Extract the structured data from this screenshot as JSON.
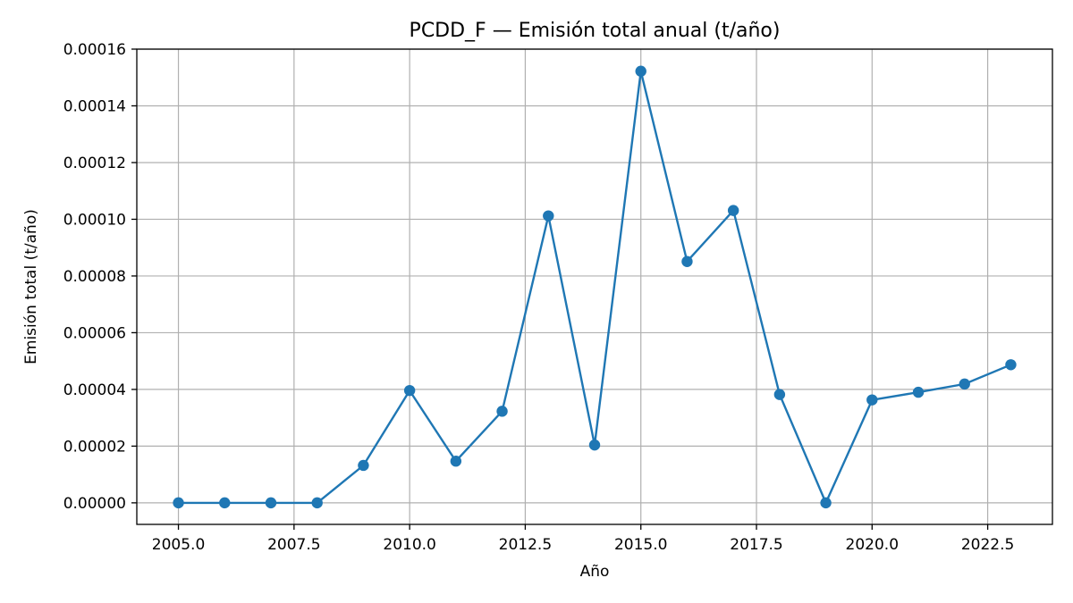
{
  "chart_data": {
    "type": "line",
    "title": "PCDD_F — Emisión total anual (t/año)",
    "xlabel": "Año",
    "ylabel": "Emisión total (t/año)",
    "xlim": [
      2004.1,
      2023.9
    ],
    "ylim": [
      -7.6e-06,
      0.00016
    ],
    "xticks": [
      2005.0,
      2007.5,
      2010.0,
      2012.5,
      2015.0,
      2017.5,
      2020.0,
      2022.5
    ],
    "xtick_labels": [
      "2005.0",
      "2007.5",
      "2010.0",
      "2012.5",
      "2015.0",
      "2017.5",
      "2020.0",
      "2022.5"
    ],
    "yticks": [
      0,
      2e-05,
      4e-05,
      6e-05,
      8e-05,
      0.0001,
      0.00012,
      0.00014,
      0.00016
    ],
    "ytick_labels": [
      "0.00000",
      "0.00002",
      "0.00004",
      "0.00006",
      "0.00008",
      "0.00010",
      "0.00012",
      "0.00014",
      "0.00016"
    ],
    "grid": true,
    "color": "#1f77b4",
    "x": [
      2005,
      2006,
      2007,
      2008,
      2009,
      2010,
      2011,
      2012,
      2013,
      2014,
      2015,
      2016,
      2017,
      2018,
      2019,
      2020,
      2021,
      2022,
      2023
    ],
    "y": [
      0,
      0,
      0,
      0,
      1.32e-05,
      3.96e-05,
      1.47e-05,
      3.23e-05,
      0.0001012,
      2.04e-05,
      0.0001522,
      8.51e-05,
      0.0001031,
      3.82e-05,
      0,
      3.63e-05,
      3.9e-05,
      4.19e-05,
      4.87e-05
    ]
  }
}
